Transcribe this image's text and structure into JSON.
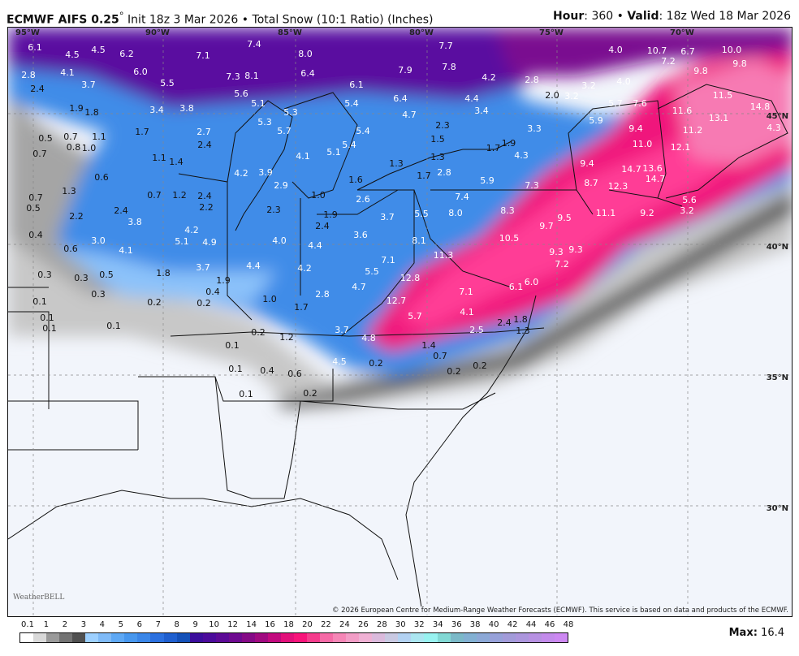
{
  "header": {
    "model": "ECMWF AIFS 0.25",
    "degree": "°",
    "init": "Init 18z 3 Mar 2026",
    "sep": "•",
    "product": "Total Snow (10:1 Ratio) (Inches)",
    "hour_label": "Hour",
    "hour": "360",
    "valid_label": "Valid",
    "valid": "18z Wed 18 Mar 2026"
  },
  "map": {
    "lon_labels": [
      "95°W",
      "90°W",
      "85°W",
      "80°W",
      "75°W",
      "70°W"
    ],
    "lat_labels": [
      "45°N",
      "40°N",
      "35°N",
      "30°N"
    ],
    "snow_values": [
      "6.1",
      "4.5",
      "4.5",
      "6.2",
      "7.1",
      "7.4",
      "8.0",
      "7.7",
      "4.0",
      "10.7",
      "6.7",
      "10.0",
      "2.8",
      "4.1",
      "6.0",
      "7.3",
      "8.1",
      "6.4",
      "7.9",
      "7.8",
      "4.2",
      "2.8",
      "7.2",
      "9.8",
      "9.8",
      "2.4",
      "3.7",
      "5.5",
      "5.6",
      "6.1",
      "4.0",
      "3.2",
      "11.5",
      "1.9",
      "1.8",
      "3.4",
      "3.8",
      "5.1",
      "5.3",
      "5.4",
      "6.4",
      "4.7",
      "4.4",
      "3.4",
      "2.0",
      "3.2",
      "5.7",
      "7.6",
      "11.6",
      "14.8",
      "13.1",
      "4.3",
      "5.9",
      "0.5",
      "0.7",
      "1.1",
      "0.8",
      "1.0",
      "1.7",
      "2.7",
      "5.3",
      "5.7",
      "5.4",
      "2.3",
      "3.3",
      "9.4",
      "11.2",
      "11.0",
      "12.1",
      "1.5",
      "1.7",
      "1.9",
      "5.4",
      "5.1",
      "4.1",
      "2.4",
      "0.7",
      "1.3",
      "4.3",
      "1.1",
      "1.4",
      "1.3",
      "9.4",
      "14.7",
      "13.6",
      "0.6",
      "4.2",
      "3.9",
      "2.9",
      "1.6",
      "1.7",
      "2.8",
      "5.9",
      "7.3",
      "8.7",
      "14.7",
      "12.3",
      "1.3",
      "0.7",
      "1.2",
      "2.4",
      "2.2",
      "1.0",
      "2.6",
      "7.4",
      "0.7",
      "0.5",
      "2.3",
      "1.9",
      "2.4",
      "3.7",
      "5.5",
      "8.0",
      "8.3",
      "9.5",
      "11.1",
      "9.2",
      "5.6",
      "3.2",
      "2.4",
      "2.2",
      "3.8",
      "9.7",
      "0.4",
      "4.2",
      "5.1",
      "4.9",
      "3.0",
      "4.0",
      "4.4",
      "3.6",
      "8.1",
      "10.5",
      "0.6",
      "4.1",
      "9.3",
      "9.3",
      "11.3",
      "7.1",
      "7.2",
      "4.4",
      "4.2",
      "3.7",
      "0.3",
      "0.3",
      "0.5",
      "1.8",
      "5.5",
      "12.8",
      "6.1",
      "6.0",
      "1.9",
      "0.3",
      "0.4",
      "2.8",
      "7.1",
      "4.7",
      "0.1",
      "0.2",
      "0.2",
      "1.0",
      "1.7",
      "12.7",
      "0.1",
      "5.7",
      "4.1",
      "2.4",
      "1.8",
      "0.1",
      "0.1",
      "0.2",
      "1.2",
      "3.7",
      "4.8",
      "2.5",
      "1.3",
      "0.1",
      "1.4",
      "0.7",
      "4.5",
      "0.2",
      "0.1",
      "0.4",
      "0.6",
      "0.2",
      "0.2",
      "0.1",
      "0.2"
    ],
    "logo": "WeatherBELL",
    "copyright": "© 2026 European Centre for Medium-Range Weather Forecasts (ECMWF). This service is based on data and products of the ECMWF."
  },
  "legend": {
    "tick_labels": [
      "0.1",
      "1",
      "2",
      "3",
      "4",
      "5",
      "6",
      "7",
      "8",
      "9",
      "10",
      "12",
      "14",
      "16",
      "18",
      "20",
      "22",
      "24",
      "26",
      "28",
      "30",
      "32",
      "34",
      "36",
      "38",
      "40",
      "42",
      "44",
      "46",
      "48"
    ],
    "colors": [
      "#ffffff",
      "#d9d9d9",
      "#9a9a9a",
      "#737373",
      "#505050",
      "#9dd0ff",
      "#7fbaf7",
      "#5ea8f4",
      "#4797ee",
      "#3a86e8",
      "#2b70df",
      "#1f5fcf",
      "#1450b8",
      "#3b0e9c",
      "#4b0b9b",
      "#5c0a96",
      "#6e0a90",
      "#850a86",
      "#a00a80",
      "#c20a7e",
      "#e2107a",
      "#f8147a",
      "#f53c8c",
      "#f56aa6",
      "#f586b6",
      "#f29dc6",
      "#efb1d4",
      "#dbbadc",
      "#c9c9e2",
      "#b3d2f2",
      "#abe6f1",
      "#98f2f0",
      "#82d8d4",
      "#7bb9c8",
      "#82b0d2",
      "#8ca8d6",
      "#97a1d9",
      "#a29bd9",
      "#ac96dd",
      "#b791e2",
      "#c38beb",
      "#cd88f2"
    ],
    "max_label": "Max:",
    "max_value": "16.4"
  }
}
